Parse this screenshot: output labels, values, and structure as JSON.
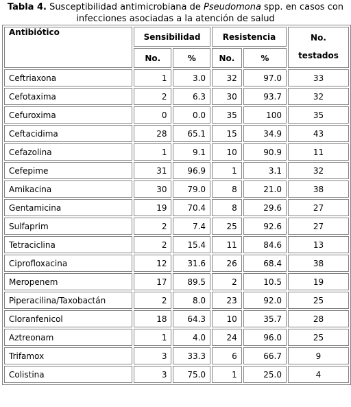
{
  "caption": {
    "label": "Tabla 4.",
    "text_before": " Susceptibilidad antimicrobiana de ",
    "italic": "Pseudomona",
    "text_after": " spp. en casos con",
    "line2": "infecciones asociadas a la atención de salud"
  },
  "headers": {
    "antibiotic": "Antibiótico",
    "sensitivity": "Sensibilidad",
    "resistance": "Resistencia",
    "tested_line1": "No.",
    "tested_line2": "testados",
    "no": "No.",
    "percent": "%"
  },
  "rows": [
    {
      "name": "Ceftriaxona",
      "s_no": "1",
      "s_pct": "3.0",
      "r_no": "32",
      "r_pct": "97.0",
      "tested": "33"
    },
    {
      "name": "Cefotaxima",
      "s_no": "2",
      "s_pct": "6.3",
      "r_no": "30",
      "r_pct": "93.7",
      "tested": "32"
    },
    {
      "name": "Cefuroxima",
      "s_no": "0",
      "s_pct": "0.0",
      "r_no": "35",
      "r_pct": "100",
      "tested": "35"
    },
    {
      "name": "Ceftacidima",
      "s_no": "28",
      "s_pct": "65.1",
      "r_no": "15",
      "r_pct": "34.9",
      "tested": "43"
    },
    {
      "name": "Cefazolina",
      "s_no": "1",
      "s_pct": "9.1",
      "r_no": "10",
      "r_pct": "90.9",
      "tested": "11"
    },
    {
      "name": "Cefepime",
      "s_no": "31",
      "s_pct": "96.9",
      "r_no": "1",
      "r_pct": "3.1",
      "tested": "32"
    },
    {
      "name": "Amikacina",
      "s_no": "30",
      "s_pct": "79.0",
      "r_no": "8",
      "r_pct": "21.0",
      "tested": "38"
    },
    {
      "name": "Gentamicina",
      "s_no": "19",
      "s_pct": "70.4",
      "r_no": "8",
      "r_pct": "29.6",
      "tested": "27"
    },
    {
      "name": "Sulfaprim",
      "s_no": "2",
      "s_pct": "7.4",
      "r_no": "25",
      "r_pct": "92.6",
      "tested": "27"
    },
    {
      "name": "Tetraciclina",
      "s_no": "2",
      "s_pct": "15.4",
      "r_no": "11",
      "r_pct": "84.6",
      "tested": "13"
    },
    {
      "name": "Ciprofloxacina",
      "s_no": "12",
      "s_pct": "31.6",
      "r_no": "26",
      "r_pct": "68.4",
      "tested": "38"
    },
    {
      "name": "Meropenem",
      "s_no": "17",
      "s_pct": "89.5",
      "r_no": "2",
      "r_pct": "10.5",
      "tested": "19"
    },
    {
      "name": "Piperacilina/Taxobactán",
      "s_no": "2",
      "s_pct": "8.0",
      "r_no": "23",
      "r_pct": "92.0",
      "tested": "25"
    },
    {
      "name": "Cloranfenicol",
      "s_no": "18",
      "s_pct": "64.3",
      "r_no": "10",
      "r_pct": "35.7",
      "tested": "28"
    },
    {
      "name": "Aztreonam",
      "s_no": "1",
      "s_pct": "4.0",
      "r_no": "24",
      "r_pct": "96.0",
      "tested": "25"
    },
    {
      "name": "Trifamox",
      "s_no": "3",
      "s_pct": "33.3",
      "r_no": "6",
      "r_pct": "66.7",
      "tested": "9"
    },
    {
      "name": "Colistina",
      "s_no": "3",
      "s_pct": "75.0",
      "r_no": "1",
      "r_pct": "25.0",
      "tested": "4"
    }
  ]
}
